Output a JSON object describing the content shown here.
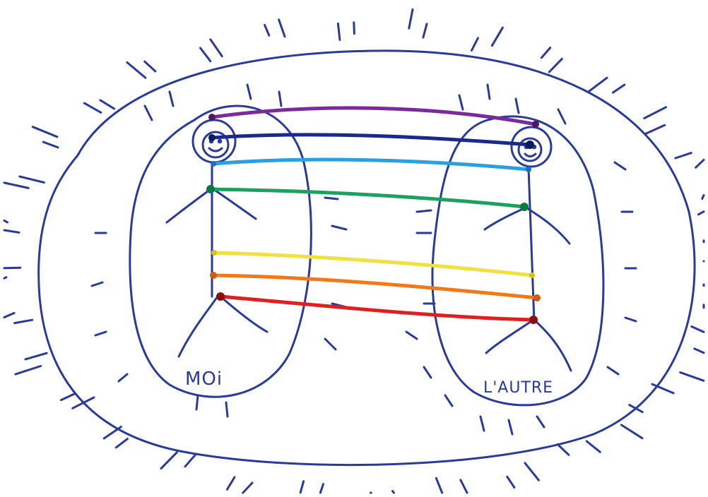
{
  "diagram": {
    "left_label": "MOi",
    "right_label": "L'AUTRE",
    "ink_color": "#2a3a9a",
    "connection_colors": [
      {
        "name": "violet",
        "color": "#7a2a9a"
      },
      {
        "name": "indigo",
        "color": "#1a2a8a"
      },
      {
        "name": "blue",
        "color": "#2aa0e0"
      },
      {
        "name": "green",
        "color": "#1ea060"
      },
      {
        "name": "yellow",
        "color": "#f0e040"
      },
      {
        "name": "orange",
        "color": "#f07a1a"
      },
      {
        "name": "red",
        "color": "#e02020"
      }
    ]
  }
}
